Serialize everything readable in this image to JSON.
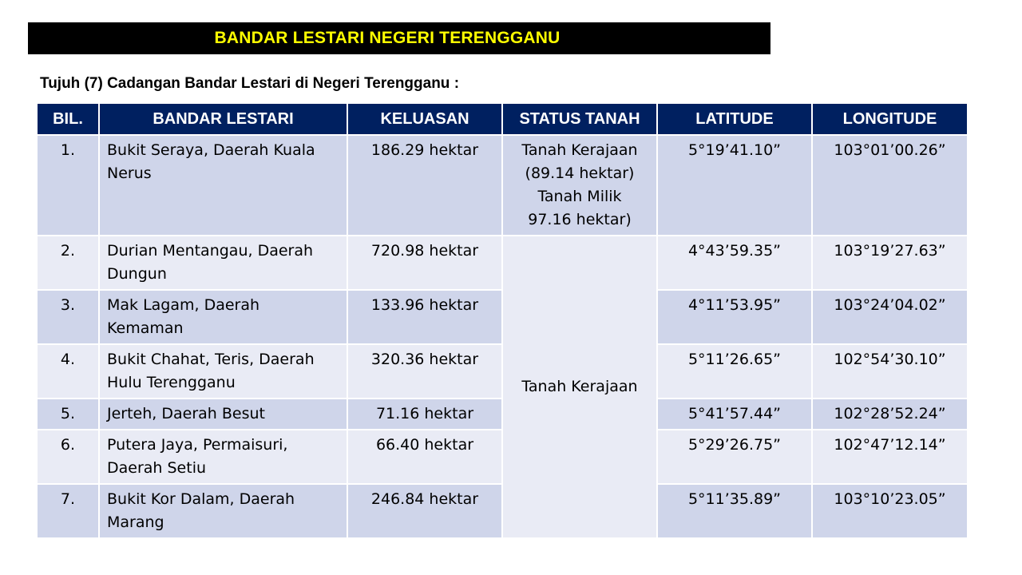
{
  "title": "BANDAR LESTARI NEGERI TERENGGANU",
  "subtitle": "Tujuh (7) Cadangan Bandar Lestari di Negeri Terengganu :",
  "table": {
    "headers": [
      "BIL.",
      "BANDAR LESTARI",
      "KELUASAN",
      "STATUS TANAH",
      "LATITUDE",
      "LONGITUDE"
    ],
    "rows": [
      {
        "bil": "1.",
        "name": "Bukit Seraya, Daerah Kuala Nerus",
        "area": "186.29 hektar",
        "status": "Tanah Kerajaan (89.14 hektar) Tanah Milik 97.16 hektar)",
        "lat": "5°19’41.10”",
        "lon": "103°01’00.26”"
      },
      {
        "bil": "2.",
        "name": "Durian Mentangau, Daerah Dungun",
        "area": "720.98 hektar",
        "lat": "4°43’59.35”",
        "lon": "103°19’27.63”"
      },
      {
        "bil": "3.",
        "name": "Mak Lagam, Daerah Kemaman",
        "area": "133.96 hektar",
        "lat": "4°11’53.95”",
        "lon": "103°24’04.02”"
      },
      {
        "bil": "4.",
        "name": "Bukit Chahat, Teris, Daerah Hulu Terengganu",
        "area": "320.36 hektar",
        "lat": "5°11’26.65”",
        "lon": "102°54’30.10”"
      },
      {
        "bil": "5.",
        "name": "Jerteh, Daerah Besut",
        "area": "71.16 hektar",
        "lat": "5°41’57.44”",
        "lon": "102°28’52.24”"
      },
      {
        "bil": "6.",
        "name": "Putera Jaya, Permaisuri, Daerah Setiu",
        "area": "66.40 hektar",
        "lat": "5°29’26.75”",
        "lon": "102°47’12.14”"
      },
      {
        "bil": "7.",
        "name": "Bukit Kor Dalam, Daerah Marang",
        "area": "246.84 hektar",
        "lat": "5°11’35.89”",
        "lon": "103°10’23.05”"
      }
    ],
    "merged_status": "Tanah Kerajaan"
  },
  "colors": {
    "header_bg": "#002060",
    "title_bg": "#000000",
    "title_text": "#ffff00",
    "row_dark": "#cfd5ea",
    "row_light": "#e9ebf5"
  }
}
